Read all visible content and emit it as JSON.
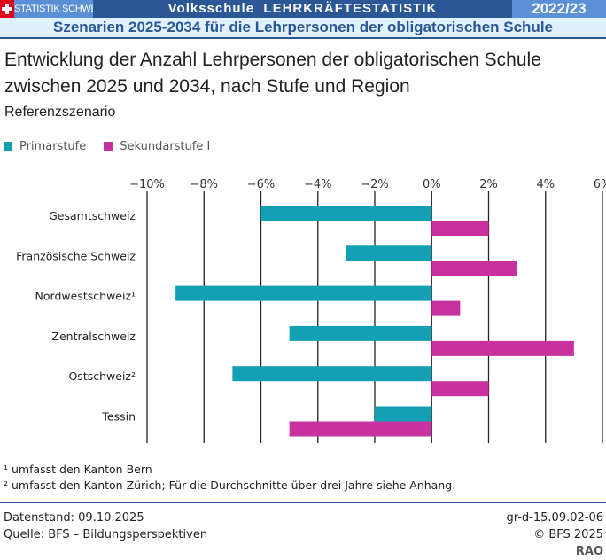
{
  "header": {
    "org": "STATISTIK SCHWEIZ",
    "title": "Volksschule  LEHRKRÄFTESTATISTIK",
    "year": "2022/23",
    "subtitle": "Szenarien 2025-2034 für die Lehrpersonen der obligatorischen Schule"
  },
  "chart_data": {
    "type": "bar",
    "orientation": "horizontal",
    "title": "Entwicklung der Anzahl Lehrpersonen der obligatorischen Schule zwischen 2025 und 2034, nach Stufe und Region",
    "subtitle": "Referenzszenario",
    "categories": [
      "Gesamtschweiz",
      "Französische Schweiz",
      "Nordwestschweiz¹",
      "Zentralschweiz",
      "Ostschweiz²",
      "Tessin"
    ],
    "series": [
      {
        "name": "Primarstufe",
        "color": "#14a0b4",
        "values": [
          -6,
          -3,
          -9,
          -5,
          -7,
          -2
        ]
      },
      {
        "name": "Sekundarstufe I",
        "color": "#c8329f",
        "values": [
          2,
          3,
          1,
          5,
          2,
          -5
        ]
      }
    ],
    "xlim": [
      -10,
      6
    ],
    "ticks": [
      "−10%",
      "−8%",
      "−6%",
      "−4%",
      "−2%",
      "0%",
      "2%",
      "4%",
      "6%"
    ],
    "tick_values": [
      -10,
      -8,
      -6,
      -4,
      -2,
      0,
      2,
      4,
      6
    ],
    "grid": true,
    "legend": "top-left"
  },
  "footnotes": [
    "¹ umfasst den Kanton Bern",
    "² umfasst den Kanton Zürich; Für die Durchschnitte über drei Jahre siehe Anhang."
  ],
  "footer": {
    "date": "Datenstand: 09.10.2025",
    "source": "Quelle: BFS – Bildungsperspektiven",
    "code": "gr-d-15.09.02-06",
    "copyright": "© BFS 2025",
    "author": "RAO"
  }
}
